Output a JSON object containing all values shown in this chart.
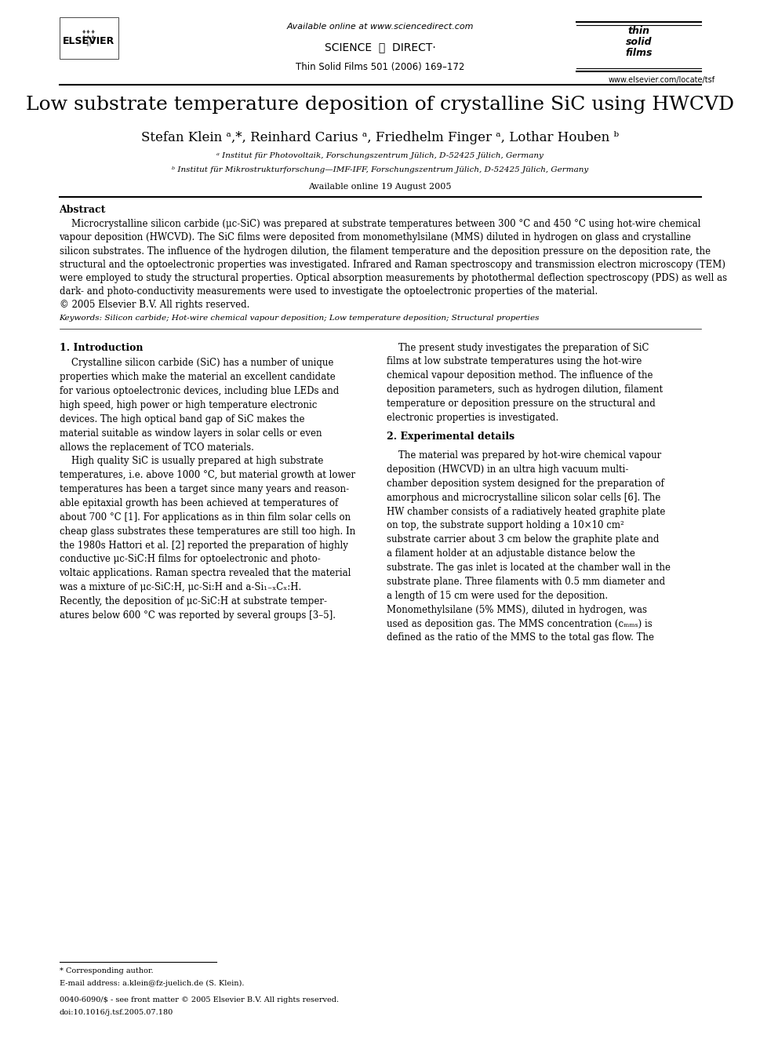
{
  "title": "Low substrate temperature deposition of crystalline SiC using HWCVD",
  "authors": "Stefan Klein ᵃ,*, Reinhard Carius ᵃ, Friedhelm Finger ᵃ, Lothar Houben ᵇ",
  "affil_a": "ᵃ Institut für Photovoltaik, Forschungszentrum Jülich, D-52425 Jülich, Germany",
  "affil_b": "ᵇ Institut für Mikrostrukturforschung—IMF-IFF, Forschungszentrum Jülich, D-52425 Jülich, Germany",
  "available_online": "Available online 19 August 2005",
  "journal_info": "Thin Solid Films 501 (2006) 169–172",
  "available_online_top": "Available online at www.sciencedirect.com",
  "website": "www.elsevier.com/locate/tsf",
  "abstract_title": "Abstract",
  "abstract_text": "    Microcrystalline silicon carbide (μc-SiC) was prepared at substrate temperatures between 300 °C and 450 °C using hot-wire chemical vapour deposition (HWCVD). The SiC films were deposited from monomethylsilane (MMS) diluted in hydrogen on glass and crystalline silicon substrates. The influence of the hydrogen dilution, the filament temperature and the deposition pressure on the deposition rate, the structural and the optoelectronic properties was investigated. Infrared and Raman spectroscopy and transmission electron microscopy (TEM) were employed to study the structural properties. Optical absorption measurements by photothermal deflection spectroscopy (PDS) as well as dark- and photo-conductivity measurements were used to investigate the optoelectronic properties of the material.\n© 2005 Elsevier B.V. All rights reserved.",
  "keywords": "Keywords: Silicon carbide; Hot-wire chemical vapour deposition; Low temperature deposition; Structural properties",
  "section1_title": "1. Introduction",
  "section1_col1": "    Crystalline silicon carbide (SiC) has a number of unique properties which make the material an excellent candidate for various optoelectronic devices, including blue LEDs and high speed, high power or high temperature electronic devices. The high optical band gap of SiC makes the material suitable as window layers in solar cells or even allows the replacement of TCO materials.\n    High quality SiC is usually prepared at high substrate temperatures, i.e. above 1000 °C, but material growth at lower temperatures has been a target since many years and reasonable epitaxial growth has been achieved at temperatures of about 700 °C [1]. For applications as in thin film solar cells on cheap glass substrates these temperatures are still too high. In the 1980s Hattori et al. [2] reported the preparation of highly conductive μc-SiC:H films for optoelectronic and photovoltaic applications. Raman spectra revealed that the material was a mixture of μc-SiC:H, μc-Si:H and a-Si₁₋ₓCₓ:H. Recently, the deposition of μc-SiC:H at substrate temperatures below 600 °C was reported by several groups [3–5].",
  "section1_col2": "    The present study investigates the preparation of SiC films at low substrate temperatures using the hot-wire chemical vapour deposition method. The influence of the deposition parameters, such as hydrogen dilution, filament temperature or deposition pressure on the structural and electronic properties is investigated.",
  "section2_title": "2. Experimental details",
  "section2_col2": "    The material was prepared by hot-wire chemical vapour deposition (HWCVD) in an ultra high vacuum multi-chamber deposition system designed for the preparation of amorphous and microcrystalline silicon solar cells [6]. The HW chamber consists of a radiatively heated graphite plate on top, the substrate support holding a 10×10 cm² substrate carrier about 3 cm below the graphite plate and a filament holder at an adjustable distance below the substrate. The gas inlet is located at the chamber wall in the substrate plane. Three filaments with 0.5 mm diameter and a length of 15 cm were used for the deposition. Monomethylsilane (5% MMS), diluted in hydrogen, was used as deposition gas. The MMS concentration (cₕₘₛ) is defined as the ratio of the MMS to the total gas flow. The",
  "footnote_corresponding": "* Corresponding author.",
  "footnote_email": "E-mail address: a.klein@fz-juelich.de (S. Klein).",
  "footnote_issn": "0040-6090/$ - see front matter © 2005 Elsevier B.V. All rights reserved.",
  "footnote_doi": "doi:10.1016/j.tsf.2005.07.180",
  "bg_color": "#ffffff",
  "text_color": "#000000",
  "title_fontsize": 18,
  "author_fontsize": 12,
  "body_fontsize": 8.5,
  "section_title_fontsize": 9,
  "abstract_title_fontsize": 9
}
